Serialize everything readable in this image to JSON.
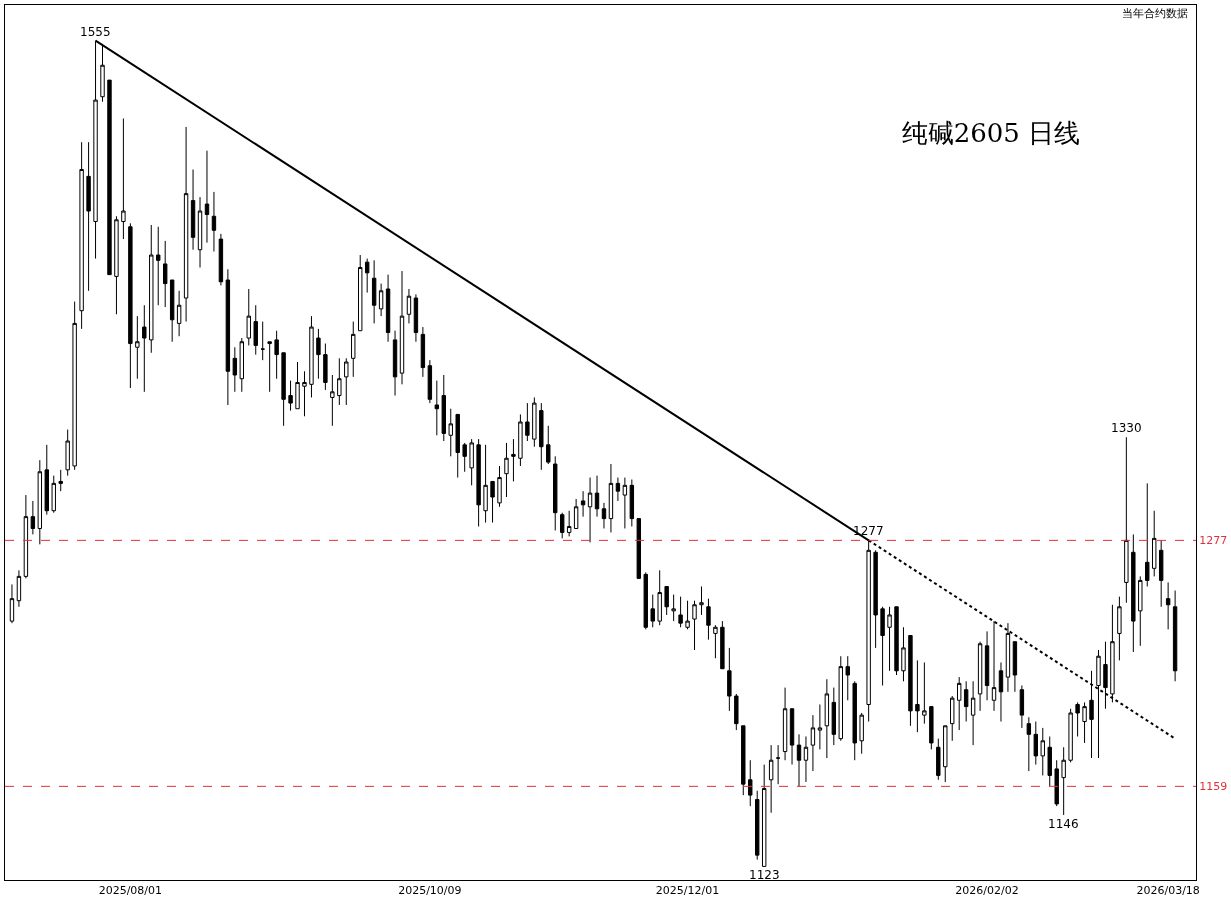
{
  "chart_data": {
    "type": "candlestick",
    "title": "纯碱2605 日线",
    "annotations": [
      "当年合约数据",
      {
        "text": "1555",
        "y": 1555
      },
      {
        "text": "1123",
        "y": 1123
      },
      {
        "text": "1277",
        "y": 1277
      },
      {
        "text": "1146",
        "y": 1146
      },
      {
        "text": "1330",
        "y": 1330
      }
    ],
    "categories": [
      null,
      null,
      null,
      null,
      null,
      null,
      null,
      null,
      null,
      null,
      null,
      null,
      null,
      null,
      null,
      null,
      null,
      "2025/08/01",
      null,
      null,
      null,
      null,
      null,
      null,
      null,
      null,
      null,
      null,
      null,
      null,
      null,
      null,
      null,
      null,
      null,
      null,
      null,
      null,
      null,
      null,
      null,
      null,
      null,
      null,
      null,
      null,
      null,
      null,
      null,
      null,
      null,
      null,
      null,
      null,
      null,
      null,
      null,
      null,
      null,
      null,
      "2025/10/09",
      null,
      null,
      null,
      null,
      null,
      null,
      null,
      null,
      null,
      null,
      null,
      null,
      null,
      null,
      null,
      null,
      null,
      null,
      null,
      null,
      null,
      null,
      null,
      null,
      null,
      null,
      null,
      null,
      null,
      null,
      null,
      null,
      null,
      null,
      null,
      null,
      "2025/12/01",
      null,
      null,
      null,
      null,
      null,
      null,
      null,
      null,
      null,
      null,
      null,
      null,
      null,
      null,
      null,
      null,
      null,
      null,
      null,
      null,
      null,
      null,
      null,
      null,
      null,
      null,
      null,
      null,
      null,
      null,
      null,
      null,
      null,
      null,
      null,
      null,
      null,
      null,
      null,
      null,
      null,
      null,
      "2026/02/02",
      null,
      null,
      null,
      null,
      null,
      null,
      null,
      null,
      null,
      null,
      null,
      null,
      null,
      null,
      null,
      null,
      null,
      null,
      null,
      null,
      null,
      null,
      null,
      null,
      null,
      "2026/03/18",
      null
    ],
    "ohlc": [
      [
        1237,
        1255,
        1236,
        1248
      ],
      [
        1247,
        1262,
        1244,
        1259
      ],
      [
        1259,
        1300,
        1258,
        1289
      ],
      [
        1289,
        1297,
        1280,
        1283
      ],
      [
        1283,
        1318,
        1275,
        1312
      ],
      [
        1313,
        1326,
        1290,
        1292
      ],
      [
        1292,
        1310,
        1291,
        1306
      ],
      [
        1307,
        1313,
        1302,
        1306
      ],
      [
        1313,
        1334,
        1310,
        1328
      ],
      [
        1315,
        1403,
        1313,
        1391
      ],
      [
        1398,
        1494,
        1388,
        1478
      ],
      [
        1474,
        1494,
        1409,
        1454
      ],
      [
        1448,
        1555,
        1427,
        1519
      ],
      [
        1521,
        1553,
        1518,
        1540
      ],
      [
        1531,
        1531,
        1418,
        1418
      ],
      [
        1417,
        1451,
        1396,
        1449
      ],
      [
        1448,
        1508,
        1438,
        1454
      ],
      [
        1445,
        1447,
        1356,
        1380
      ],
      [
        1378,
        1395,
        1361,
        1381
      ],
      [
        1389,
        1401,
        1354,
        1383
      ],
      [
        1382,
        1446,
        1375,
        1429
      ],
      [
        1429,
        1445,
        1401,
        1426
      ],
      [
        1424,
        1437,
        1400,
        1413
      ],
      [
        1415,
        1415,
        1381,
        1393
      ],
      [
        1391,
        1409,
        1384,
        1401
      ],
      [
        1405,
        1503,
        1392,
        1464
      ],
      [
        1460,
        1478,
        1432,
        1439
      ],
      [
        1432,
        1462,
        1422,
        1454
      ],
      [
        1458,
        1489,
        1436,
        1452
      ],
      [
        1451,
        1465,
        1431,
        1443
      ],
      [
        1438,
        1441,
        1412,
        1414
      ],
      [
        1415,
        1421,
        1347,
        1365
      ],
      [
        1372,
        1378,
        1354,
        1363
      ],
      [
        1361,
        1383,
        1354,
        1381
      ],
      [
        1383,
        1410,
        1379,
        1395
      ],
      [
        1392,
        1401,
        1374,
        1379
      ],
      [
        1377,
        1392,
        1371,
        1377
      ],
      [
        1380,
        1381,
        1354,
        1381
      ],
      [
        1382,
        1387,
        1361,
        1374
      ],
      [
        1375,
        1375,
        1336,
        1350
      ],
      [
        1352,
        1360,
        1344,
        1348
      ],
      [
        1345,
        1370,
        1345,
        1359
      ],
      [
        1357,
        1365,
        1341,
        1359
      ],
      [
        1358,
        1395,
        1351,
        1389
      ],
      [
        1383,
        1388,
        1361,
        1374
      ],
      [
        1374,
        1380,
        1355,
        1359
      ],
      [
        1351,
        1363,
        1336,
        1354
      ],
      [
        1352,
        1372,
        1347,
        1361
      ],
      [
        1362,
        1372,
        1347,
        1370
      ],
      [
        1372,
        1392,
        1362,
        1385
      ],
      [
        1387,
        1429,
        1387,
        1422
      ],
      [
        1425,
        1427,
        1408,
        1419
      ],
      [
        1416,
        1426,
        1391,
        1401
      ],
      [
        1399,
        1413,
        1395,
        1409
      ],
      [
        1410,
        1418,
        1381,
        1386
      ],
      [
        1382,
        1387,
        1352,
        1362
      ],
      [
        1364,
        1420,
        1358,
        1395
      ],
      [
        1396,
        1410,
        1391,
        1406
      ],
      [
        1405,
        1407,
        1381,
        1386
      ],
      [
        1385,
        1389,
        1362,
        1367
      ],
      [
        1368,
        1371,
        1348,
        1350
      ],
      [
        1347,
        1360,
        1331,
        1345
      ],
      [
        1352,
        1363,
        1328,
        1332
      ],
      [
        1331,
        1345,
        1320,
        1337
      ],
      [
        1342,
        1342,
        1309,
        1322
      ],
      [
        1326,
        1327,
        1312,
        1320
      ],
      [
        1314,
        1329,
        1305,
        1327
      ],
      [
        1326,
        1329,
        1284,
        1295
      ],
      [
        1292,
        1326,
        1286,
        1305
      ],
      [
        1307,
        1307,
        1286,
        1299
      ],
      [
        1296,
        1315,
        1294,
        1309
      ],
      [
        1311,
        1327,
        1299,
        1319
      ],
      [
        1321,
        1329,
        1307,
        1320
      ],
      [
        1319,
        1342,
        1315,
        1338
      ],
      [
        1338,
        1348,
        1328,
        1331
      ],
      [
        1329,
        1351,
        1325,
        1348
      ],
      [
        1344,
        1348,
        1313,
        1325
      ],
      [
        1326,
        1336,
        1316,
        1317
      ],
      [
        1316,
        1320,
        1282,
        1291
      ],
      [
        1290,
        1291,
        1278,
        1281
      ],
      [
        1281,
        1292,
        1279,
        1284
      ],
      [
        1283,
        1298,
        1283,
        1294
      ],
      [
        1297,
        1302,
        1289,
        1295
      ],
      [
        1294,
        1309,
        1276,
        1301
      ],
      [
        1301,
        1310,
        1289,
        1293
      ],
      [
        1293,
        1296,
        1283,
        1288
      ],
      [
        1288,
        1316,
        1281,
        1306
      ],
      [
        1306,
        1309,
        1297,
        1302
      ],
      [
        1300,
        1309,
        1283,
        1305
      ],
      [
        1305,
        1308,
        1284,
        1288
      ],
      [
        1288,
        1288,
        1258,
        1258
      ],
      [
        1260,
        1261,
        1233,
        1234
      ],
      [
        1243,
        1250,
        1234,
        1237
      ],
      [
        1237,
        1262,
        1235,
        1251
      ],
      [
        1254,
        1254,
        1240,
        1244
      ],
      [
        1242,
        1250,
        1237,
        1243
      ],
      [
        1240,
        1249,
        1234,
        1236
      ],
      [
        1234,
        1247,
        1233,
        1237
      ],
      [
        1238,
        1247,
        1223,
        1245
      ],
      [
        1245,
        1254,
        1240,
        1246
      ],
      [
        1244,
        1248,
        1228,
        1235
      ],
      [
        1231,
        1235,
        1219,
        1234
      ],
      [
        1234,
        1237,
        1214,
        1214
      ],
      [
        1213,
        1224,
        1194,
        1201
      ],
      [
        1201,
        1202,
        1185,
        1188
      ],
      [
        1187,
        1187,
        1155,
        1160
      ],
      [
        1162,
        1171,
        1150,
        1155
      ],
      [
        1153,
        1157,
        1126,
        1128
      ],
      [
        1123,
        1169,
        1123,
        1158
      ],
      [
        1162,
        1178,
        1147,
        1171
      ],
      [
        1172,
        1178,
        1160,
        1172
      ],
      [
        1175,
        1205,
        1171,
        1195
      ],
      [
        1195,
        1195,
        1169,
        1178
      ],
      [
        1178,
        1183,
        1159,
        1171
      ],
      [
        1171,
        1182,
        1161,
        1177
      ],
      [
        1178,
        1192,
        1166,
        1186
      ],
      [
        1185,
        1197,
        1176,
        1186
      ],
      [
        1187,
        1209,
        1172,
        1202
      ],
      [
        1198,
        1205,
        1178,
        1183
      ],
      [
        1181,
        1220,
        1180,
        1215
      ],
      [
        1215,
        1220,
        1199,
        1211
      ],
      [
        1207,
        1208,
        1171,
        1179
      ],
      [
        1180,
        1193,
        1174,
        1192
      ],
      [
        1197,
        1277,
        1189,
        1272
      ],
      [
        1271,
        1272,
        1224,
        1240
      ],
      [
        1243,
        1244,
        1206,
        1230
      ],
      [
        1234,
        1244,
        1213,
        1240
      ],
      [
        1244,
        1244,
        1211,
        1213
      ],
      [
        1213,
        1234,
        1208,
        1224
      ],
      [
        1230,
        1230,
        1187,
        1194
      ],
      [
        1197,
        1218,
        1184,
        1194
      ],
      [
        1192,
        1217,
        1188,
        1194
      ],
      [
        1196,
        1196,
        1176,
        1179
      ],
      [
        1177,
        1181,
        1162,
        1164
      ],
      [
        1168,
        1187,
        1161,
        1187
      ],
      [
        1188,
        1201,
        1180,
        1200
      ],
      [
        1199,
        1210,
        1185,
        1207
      ],
      [
        1204,
        1208,
        1189,
        1196
      ],
      [
        1192,
        1208,
        1178,
        1200
      ],
      [
        1202,
        1227,
        1194,
        1226
      ],
      [
        1225,
        1232,
        1199,
        1206
      ],
      [
        1199,
        1237,
        1194,
        1205
      ],
      [
        1213,
        1217,
        1189,
        1203
      ],
      [
        1210,
        1236,
        1203,
        1231
      ],
      [
        1227,
        1227,
        1203,
        1211
      ],
      [
        1204,
        1206,
        1186,
        1192
      ],
      [
        1188,
        1191,
        1166,
        1183
      ],
      [
        1183,
        1189,
        1169,
        1173
      ],
      [
        1173,
        1186,
        1164,
        1180
      ],
      [
        1177,
        1182,
        1159,
        1164
      ],
      [
        1167,
        1171,
        1150,
        1151
      ],
      [
        1163,
        1177,
        1146,
        1171
      ],
      [
        1171,
        1195,
        1170,
        1193
      ],
      [
        1197,
        1198,
        1182,
        1193
      ],
      [
        1189,
        1198,
        1179,
        1196
      ],
      [
        1199,
        1213,
        1172,
        1190
      ],
      [
        1206,
        1223,
        1172,
        1220
      ],
      [
        1216,
        1227,
        1195,
        1205
      ],
      [
        1202,
        1245,
        1198,
        1227
      ],
      [
        1231,
        1249,
        1218,
        1244
      ],
      [
        1256,
        1330,
        1246,
        1277
      ],
      [
        1271,
        1280,
        1222,
        1237
      ],
      [
        1242,
        1259,
        1225,
        1257
      ],
      [
        1266,
        1306,
        1254,
        1257
      ],
      [
        1263,
        1292,
        1259,
        1278
      ],
      [
        1272,
        1277,
        1244,
        1257
      ],
      [
        1248,
        1256,
        1233,
        1245
      ],
      [
        1244,
        1252,
        1208,
        1213
      ]
    ],
    "color": "#000000",
    "series": [
      {
        "type": "line",
        "color": "#000000",
        "line_style": "solid",
        "values": [
          null,
          null,
          null,
          null,
          null,
          null,
          null,
          null,
          null,
          null,
          null,
          null,
          1555,
          null,
          null,
          null,
          null,
          null,
          null,
          null,
          null,
          null,
          null,
          null,
          null,
          null,
          null,
          null,
          null,
          null,
          null,
          null,
          null,
          null,
          null,
          null,
          null,
          null,
          null,
          null,
          null,
          null,
          null,
          null,
          null,
          null,
          null,
          null,
          null,
          null,
          null,
          null,
          null,
          null,
          null,
          null,
          null,
          null,
          null,
          null,
          null,
          null,
          null,
          null,
          null,
          null,
          null,
          null,
          null,
          null,
          null,
          null,
          null,
          null,
          null,
          null,
          null,
          null,
          null,
          null,
          null,
          null,
          null,
          null,
          null,
          null,
          null,
          null,
          null,
          null,
          null,
          null,
          null,
          null,
          null,
          null,
          null,
          null,
          null,
          null,
          null,
          null,
          null,
          null,
          null,
          null,
          null,
          null,
          null,
          null,
          null,
          null,
          null,
          null,
          null,
          null,
          null,
          null,
          null,
          null,
          null,
          null,
          null,
          1277,
          null,
          null,
          null,
          null,
          null,
          null,
          null,
          null,
          null,
          null,
          null,
          null,
          null,
          null,
          null,
          null,
          null,
          null,
          null,
          null,
          null,
          null,
          null,
          null,
          null,
          null,
          null,
          null,
          null,
          null,
          null,
          null,
          null,
          null,
          null,
          null,
          null,
          null,
          null,
          null,
          null,
          null,
          null,
          null
        ]
      },
      {
        "type": "line",
        "color": "#000000",
        "line_style": "dotted",
        "values": [
          null,
          null,
          null,
          null,
          null,
          null,
          null,
          null,
          null,
          null,
          null,
          null,
          null,
          null,
          null,
          null,
          null,
          null,
          null,
          null,
          null,
          null,
          null,
          null,
          null,
          null,
          null,
          null,
          null,
          null,
          null,
          null,
          null,
          null,
          null,
          null,
          null,
          null,
          null,
          null,
          null,
          null,
          null,
          null,
          null,
          null,
          null,
          null,
          null,
          null,
          null,
          null,
          null,
          null,
          null,
          null,
          null,
          null,
          null,
          null,
          null,
          null,
          null,
          null,
          null,
          null,
          null,
          null,
          null,
          null,
          null,
          null,
          null,
          null,
          null,
          null,
          null,
          null,
          null,
          null,
          null,
          null,
          null,
          null,
          null,
          null,
          null,
          null,
          null,
          null,
          null,
          null,
          null,
          null,
          null,
          null,
          null,
          null,
          null,
          null,
          null,
          null,
          null,
          null,
          null,
          null,
          null,
          null,
          null,
          null,
          null,
          null,
          null,
          null,
          null,
          null,
          null,
          null,
          null,
          null,
          null,
          null,
          null,
          1277,
          null,
          null,
          null,
          null,
          null,
          null,
          null,
          null,
          null,
          null,
          null,
          null,
          null,
          null,
          null,
          null,
          null,
          null,
          null,
          null,
          null,
          null,
          null,
          null,
          null,
          null,
          null,
          null,
          null,
          null,
          null,
          null,
          null,
          null,
          null,
          null,
          null,
          null,
          null,
          null,
          null,
          null,
          null,
          1181
        ]
      }
    ],
    "ref_lines": [
      {
        "axis": "y",
        "value": 1277,
        "color": "#e0303a",
        "line_style": "dashed"
      },
      {
        "axis": "y",
        "value": 1159,
        "color": "#e0303a",
        "line_style": "dashed"
      }
    ],
    "ylim": [
      1117,
      1577
    ],
    "yticks": [
      1277,
      1159
    ],
    "log": true
  }
}
